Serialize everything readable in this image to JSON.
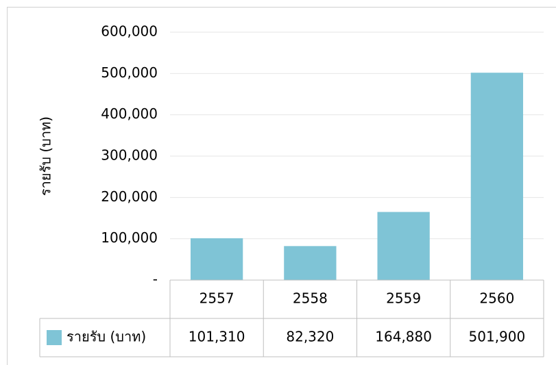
{
  "chart_data": {
    "type": "bar",
    "y_label": "รายรับ (บาท)",
    "categories": [
      "2557",
      "2558",
      "2559",
      "2560"
    ],
    "series": [
      {
        "name": "รายรับ (บาท)",
        "color": "#7fc4d6",
        "values": [
          101310,
          82320,
          164880,
          501900
        ],
        "value_labels": [
          "101,310",
          "82,320",
          "164,880",
          "501,900"
        ]
      }
    ],
    "ylim": [
      0,
      600000
    ],
    "yticks": [
      {
        "value": 0,
        "label": "-"
      },
      {
        "value": 100000,
        "label": "100,000"
      },
      {
        "value": 200000,
        "label": "200,000"
      },
      {
        "value": 300000,
        "label": "300,000"
      },
      {
        "value": 400000,
        "label": "400,000"
      },
      {
        "value": 500000,
        "label": "500,000"
      },
      {
        "value": 600000,
        "label": "600,000"
      }
    ],
    "grid": true,
    "data_table": true
  }
}
